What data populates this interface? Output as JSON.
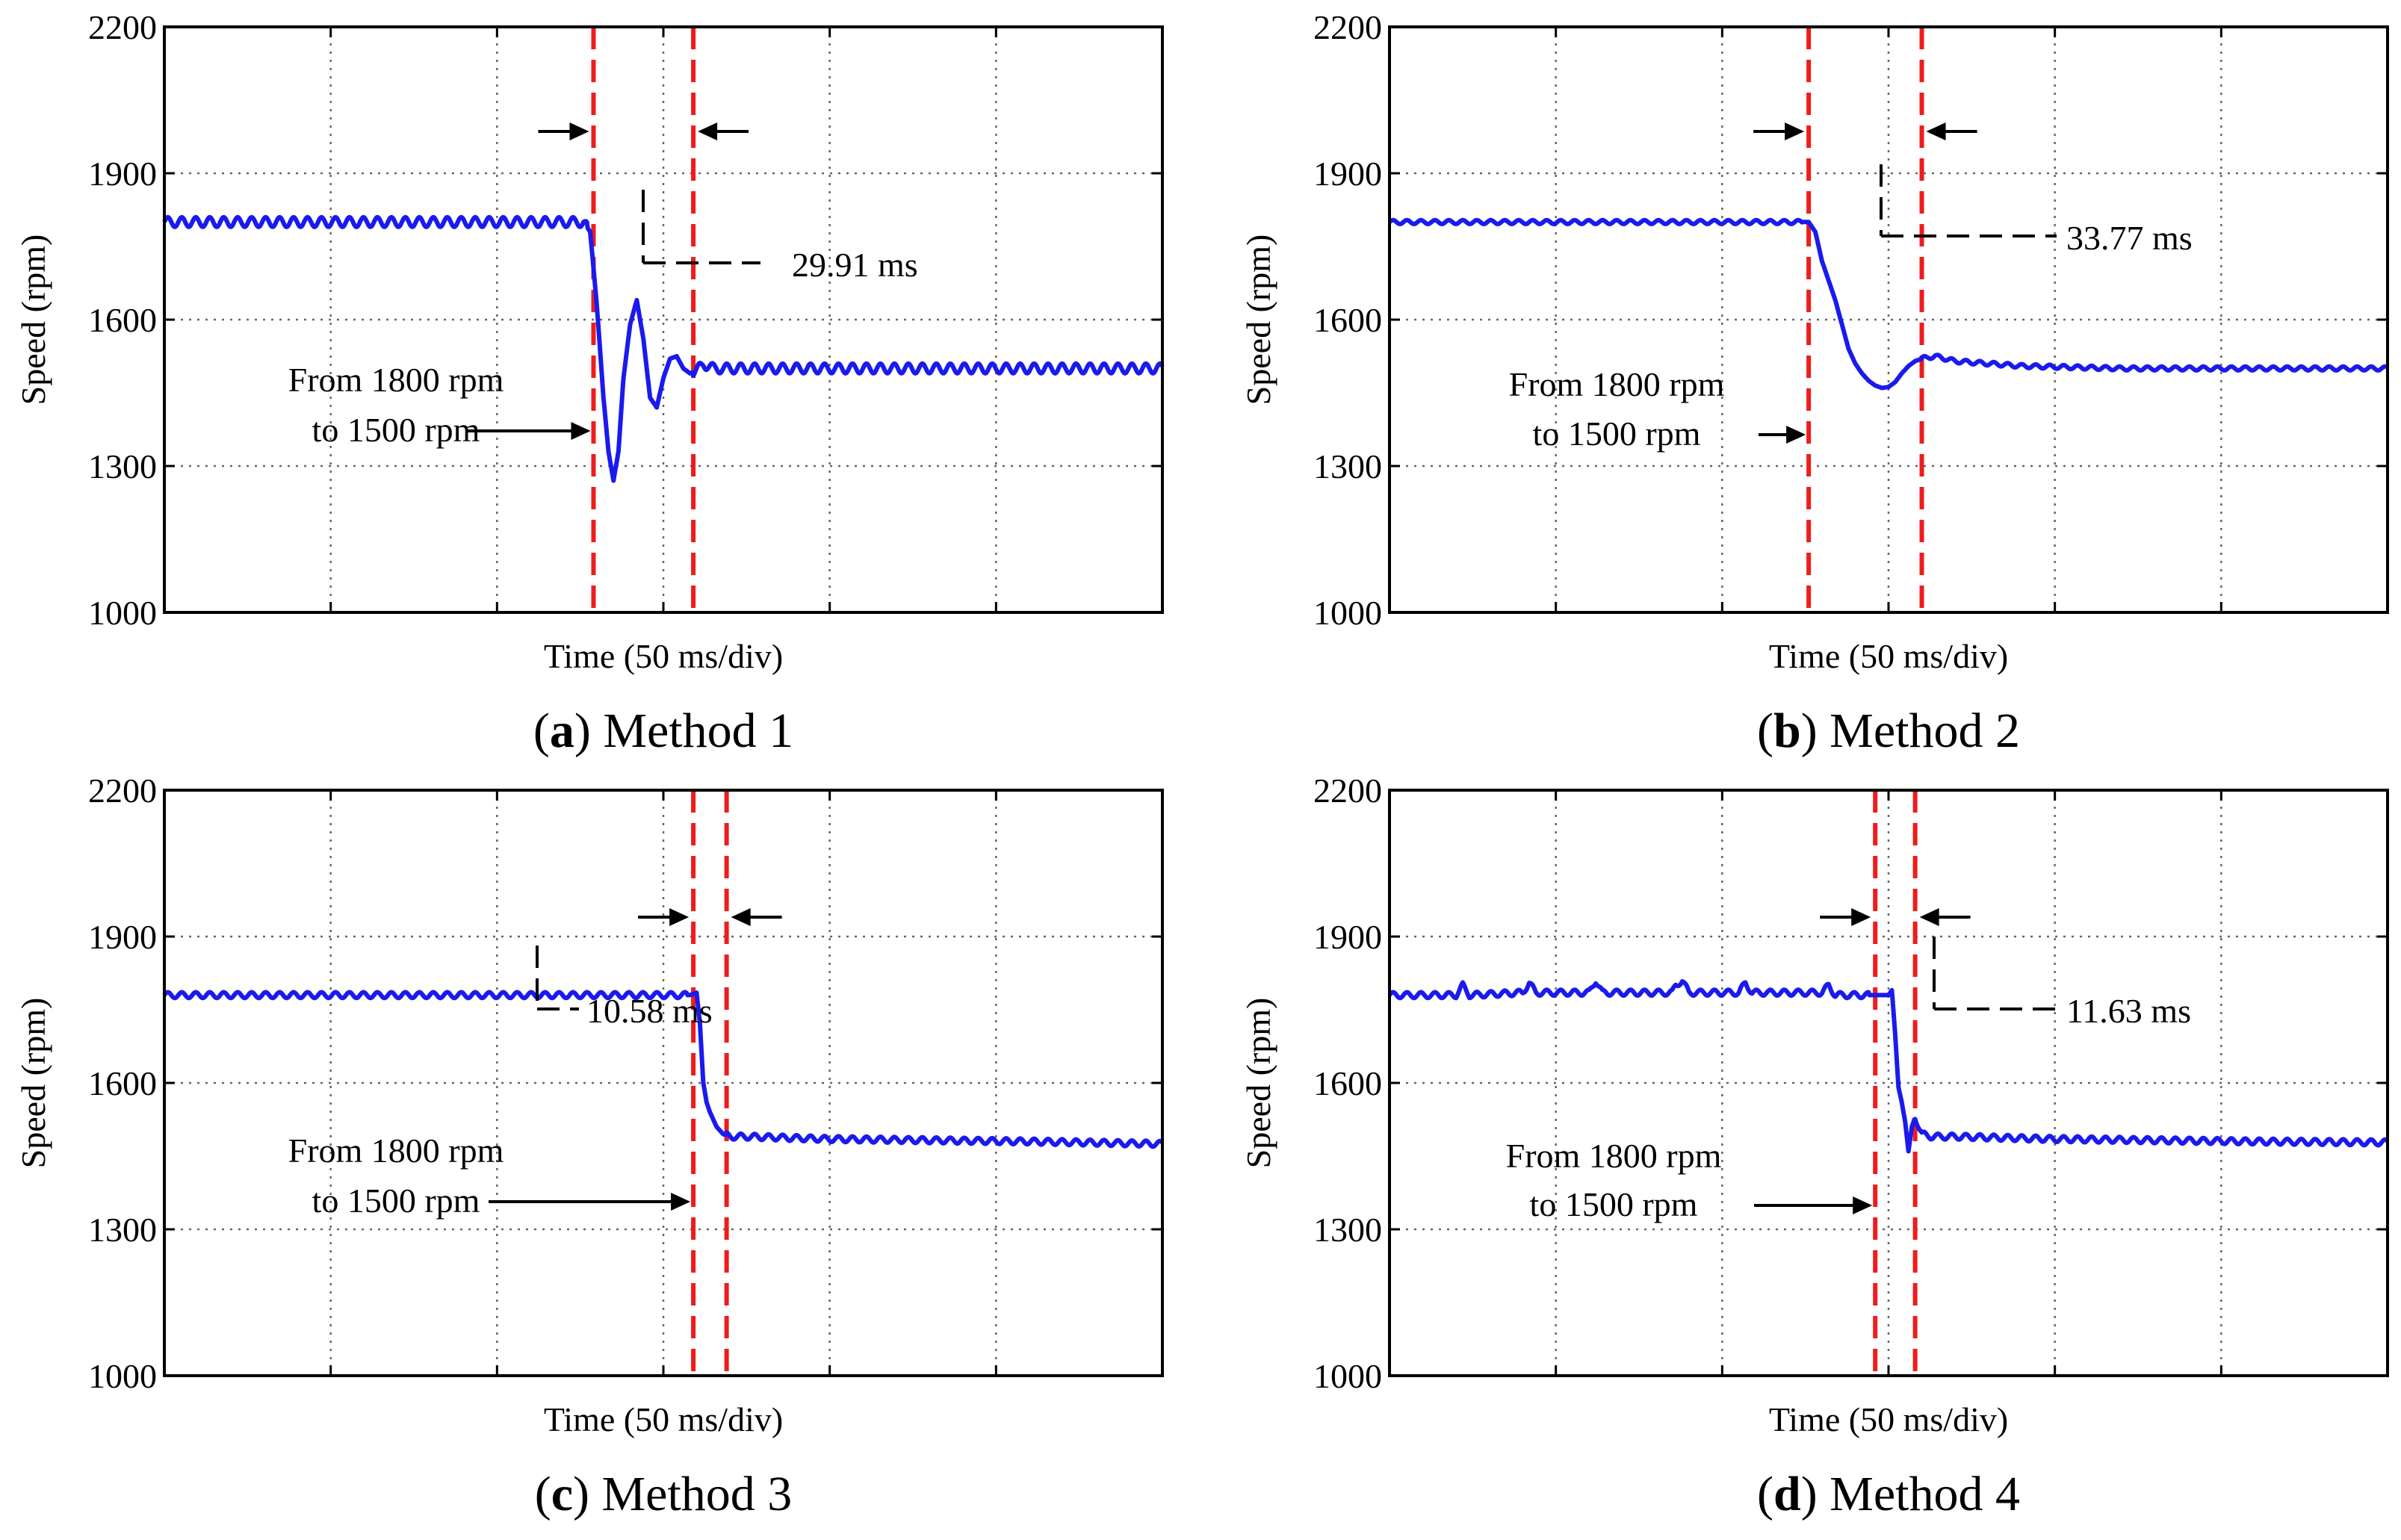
{
  "chart_data": [
    {
      "type": "line",
      "panel_letter": "a",
      "caption": "Method 1",
      "xlabel": "Time (50 ms/div)",
      "ylabel": "Speed (rpm)",
      "xlim": [
        0,
        300
      ],
      "ylim": [
        1000,
        2200
      ],
      "yticks": [
        1000,
        1300,
        1600,
        1900,
        2200
      ],
      "grid": true,
      "series": [
        {
          "color": "#1a1aee",
          "x": [
            0,
            126,
            128,
            130,
            132,
            133.5,
            135,
            136.5,
            138,
            140,
            142,
            144,
            146,
            148,
            150,
            152,
            154,
            156,
            158,
            160,
            162,
            165,
            170,
            300
          ],
          "y": [
            1800,
            1800,
            1780,
            1630,
            1440,
            1330,
            1270,
            1330,
            1480,
            1590,
            1640,
            1560,
            1440,
            1420,
            1480,
            1520,
            1525,
            1500,
            1490,
            1495,
            1510,
            1500,
            1500,
            1500
          ]
        }
      ],
      "ripple_rpm": 10,
      "vlines": [
        {
          "x": 129,
          "color": "#ee1c1c"
        },
        {
          "x": 159,
          "color": "#ee1c1c"
        }
      ],
      "annotations": {
        "interval_text": "29.91 ms",
        "step_text_line1": "From 1800 rpm",
        "step_text_line2": "to 1500 rpm"
      }
    },
    {
      "type": "line",
      "panel_letter": "b",
      "caption": "Method 2",
      "xlabel": "Time (50 ms/div)",
      "ylabel": "Speed (rpm)",
      "xlim": [
        0,
        300
      ],
      "ylim": [
        1000,
        2200
      ],
      "yticks": [
        1000,
        1300,
        1600,
        1900,
        2200
      ],
      "grid": true,
      "series": [
        {
          "color": "#1a1aee",
          "x": [
            0,
            126,
            128,
            130,
            132,
            134,
            136,
            138,
            140,
            142,
            144,
            146,
            148,
            150,
            152,
            154,
            156,
            158,
            160,
            162,
            164,
            166,
            170,
            180,
            190,
            220,
            260,
            300
          ],
          "y": [
            1800,
            1800,
            1780,
            1720,
            1680,
            1640,
            1590,
            1540,
            1510,
            1490,
            1475,
            1465,
            1460,
            1462,
            1472,
            1490,
            1505,
            1515,
            1520,
            1523,
            1525,
            1522,
            1515,
            1510,
            1505,
            1500,
            1500,
            1500
          ]
        }
      ],
      "ripple_rpm": 4,
      "vlines": [
        {
          "x": 126,
          "color": "#ee1c1c"
        },
        {
          "x": 160,
          "color": "#ee1c1c"
        }
      ],
      "annotations": {
        "interval_text": "33.77 ms",
        "step_text_line1": "From 1800 rpm",
        "step_text_line2": "to 1500 rpm"
      }
    },
    {
      "type": "line",
      "panel_letter": "c",
      "caption": "Method 3",
      "xlabel": "Time (50 ms/div)",
      "ylabel": "Speed (rpm)",
      "xlim": [
        0,
        300
      ],
      "ylim": [
        1000,
        2200
      ],
      "yticks": [
        1000,
        1300,
        1600,
        1900,
        2200
      ],
      "grid": true,
      "series": [
        {
          "color": "#1a1aee",
          "x": [
            0,
            158,
            160,
            161,
            162,
            163,
            164,
            166,
            168,
            170,
            175,
            200,
            260,
            300
          ],
          "y": [
            1780,
            1780,
            1785,
            1720,
            1600,
            1560,
            1540,
            1510,
            1495,
            1490,
            1490,
            1485,
            1480,
            1475
          ]
        }
      ],
      "ripple_rpm": 6,
      "vlines": [
        {
          "x": 159,
          "color": "#ee1c1c"
        },
        {
          "x": 169,
          "color": "#ee1c1c"
        }
      ],
      "annotations": {
        "interval_text": "10.58 ms",
        "step_text_line1": "From 1800 rpm",
        "step_text_line2": "to 1500 rpm"
      }
    },
    {
      "type": "line",
      "panel_letter": "d",
      "caption": "Method 4",
      "xlabel": "Time (50 ms/div)",
      "ylabel": "Speed (rpm)",
      "xlim": [
        0,
        300
      ],
      "ylim": [
        1000,
        2200
      ],
      "yticks": [
        1000,
        1300,
        1600,
        1900,
        2200
      ],
      "grid": true,
      "series": [
        {
          "color": "#1a1aee",
          "x": [
            0,
            20,
            22,
            24,
            40,
            42,
            44,
            60,
            62,
            64,
            85,
            86,
            88,
            90,
            105,
            107,
            109,
            130,
            132,
            134,
            150,
            151,
            152,
            153,
            154,
            155,
            156,
            157,
            158,
            160,
            163,
            170,
            200,
            260,
            300
          ],
          "y": [
            1780,
            1780,
            1800,
            1780,
            1785,
            1805,
            1785,
            1785,
            1810,
            1785,
            1785,
            1800,
            1810,
            1785,
            1785,
            1805,
            1785,
            1785,
            1800,
            1780,
            1780,
            1790,
            1700,
            1590,
            1560,
            1520,
            1460,
            1510,
            1530,
            1495,
            1490,
            1490,
            1485,
            1480,
            1478
          ]
        }
      ],
      "ripple_rpm": 6,
      "vlines": [
        {
          "x": 146,
          "color": "#ee1c1c"
        },
        {
          "x": 158,
          "color": "#ee1c1c"
        }
      ],
      "annotations": {
        "interval_text": "11.63 ms",
        "step_text_line1": "From 1800 rpm",
        "step_text_line2": "to 1500 rpm"
      }
    }
  ]
}
